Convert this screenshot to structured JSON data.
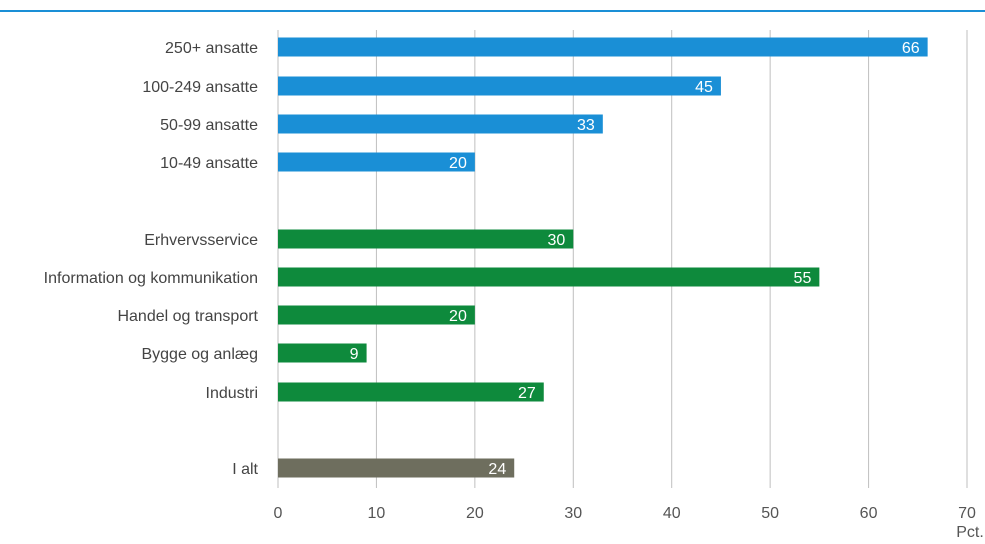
{
  "chart_data": {
    "type": "bar",
    "orientation": "horizontal",
    "categories": [
      "250+ ansatte",
      "100-249 ansatte",
      "50-99 ansatte",
      "10-49 ansatte",
      "Erhvervsservice",
      "Information og kommunikation",
      "Handel og transport",
      "Bygge og anlæg",
      "Industri",
      "I alt"
    ],
    "values": [
      66,
      45,
      33,
      20,
      30,
      55,
      20,
      9,
      27,
      24
    ],
    "groups": [
      "size",
      "size",
      "size",
      "size",
      "sector",
      "sector",
      "sector",
      "sector",
      "sector",
      "total"
    ],
    "colors": {
      "size": "#1a8fd6",
      "sector": "#0e8a3c",
      "total": "#6e6e5e",
      "top_rule": "#1a8fd6",
      "grid": "#bfbfbf"
    },
    "xlim": [
      0,
      70
    ],
    "xticks": [
      0,
      10,
      20,
      30,
      40,
      50,
      60,
      70
    ],
    "xunit": "Pct.",
    "grid": true,
    "data_labels": true
  }
}
